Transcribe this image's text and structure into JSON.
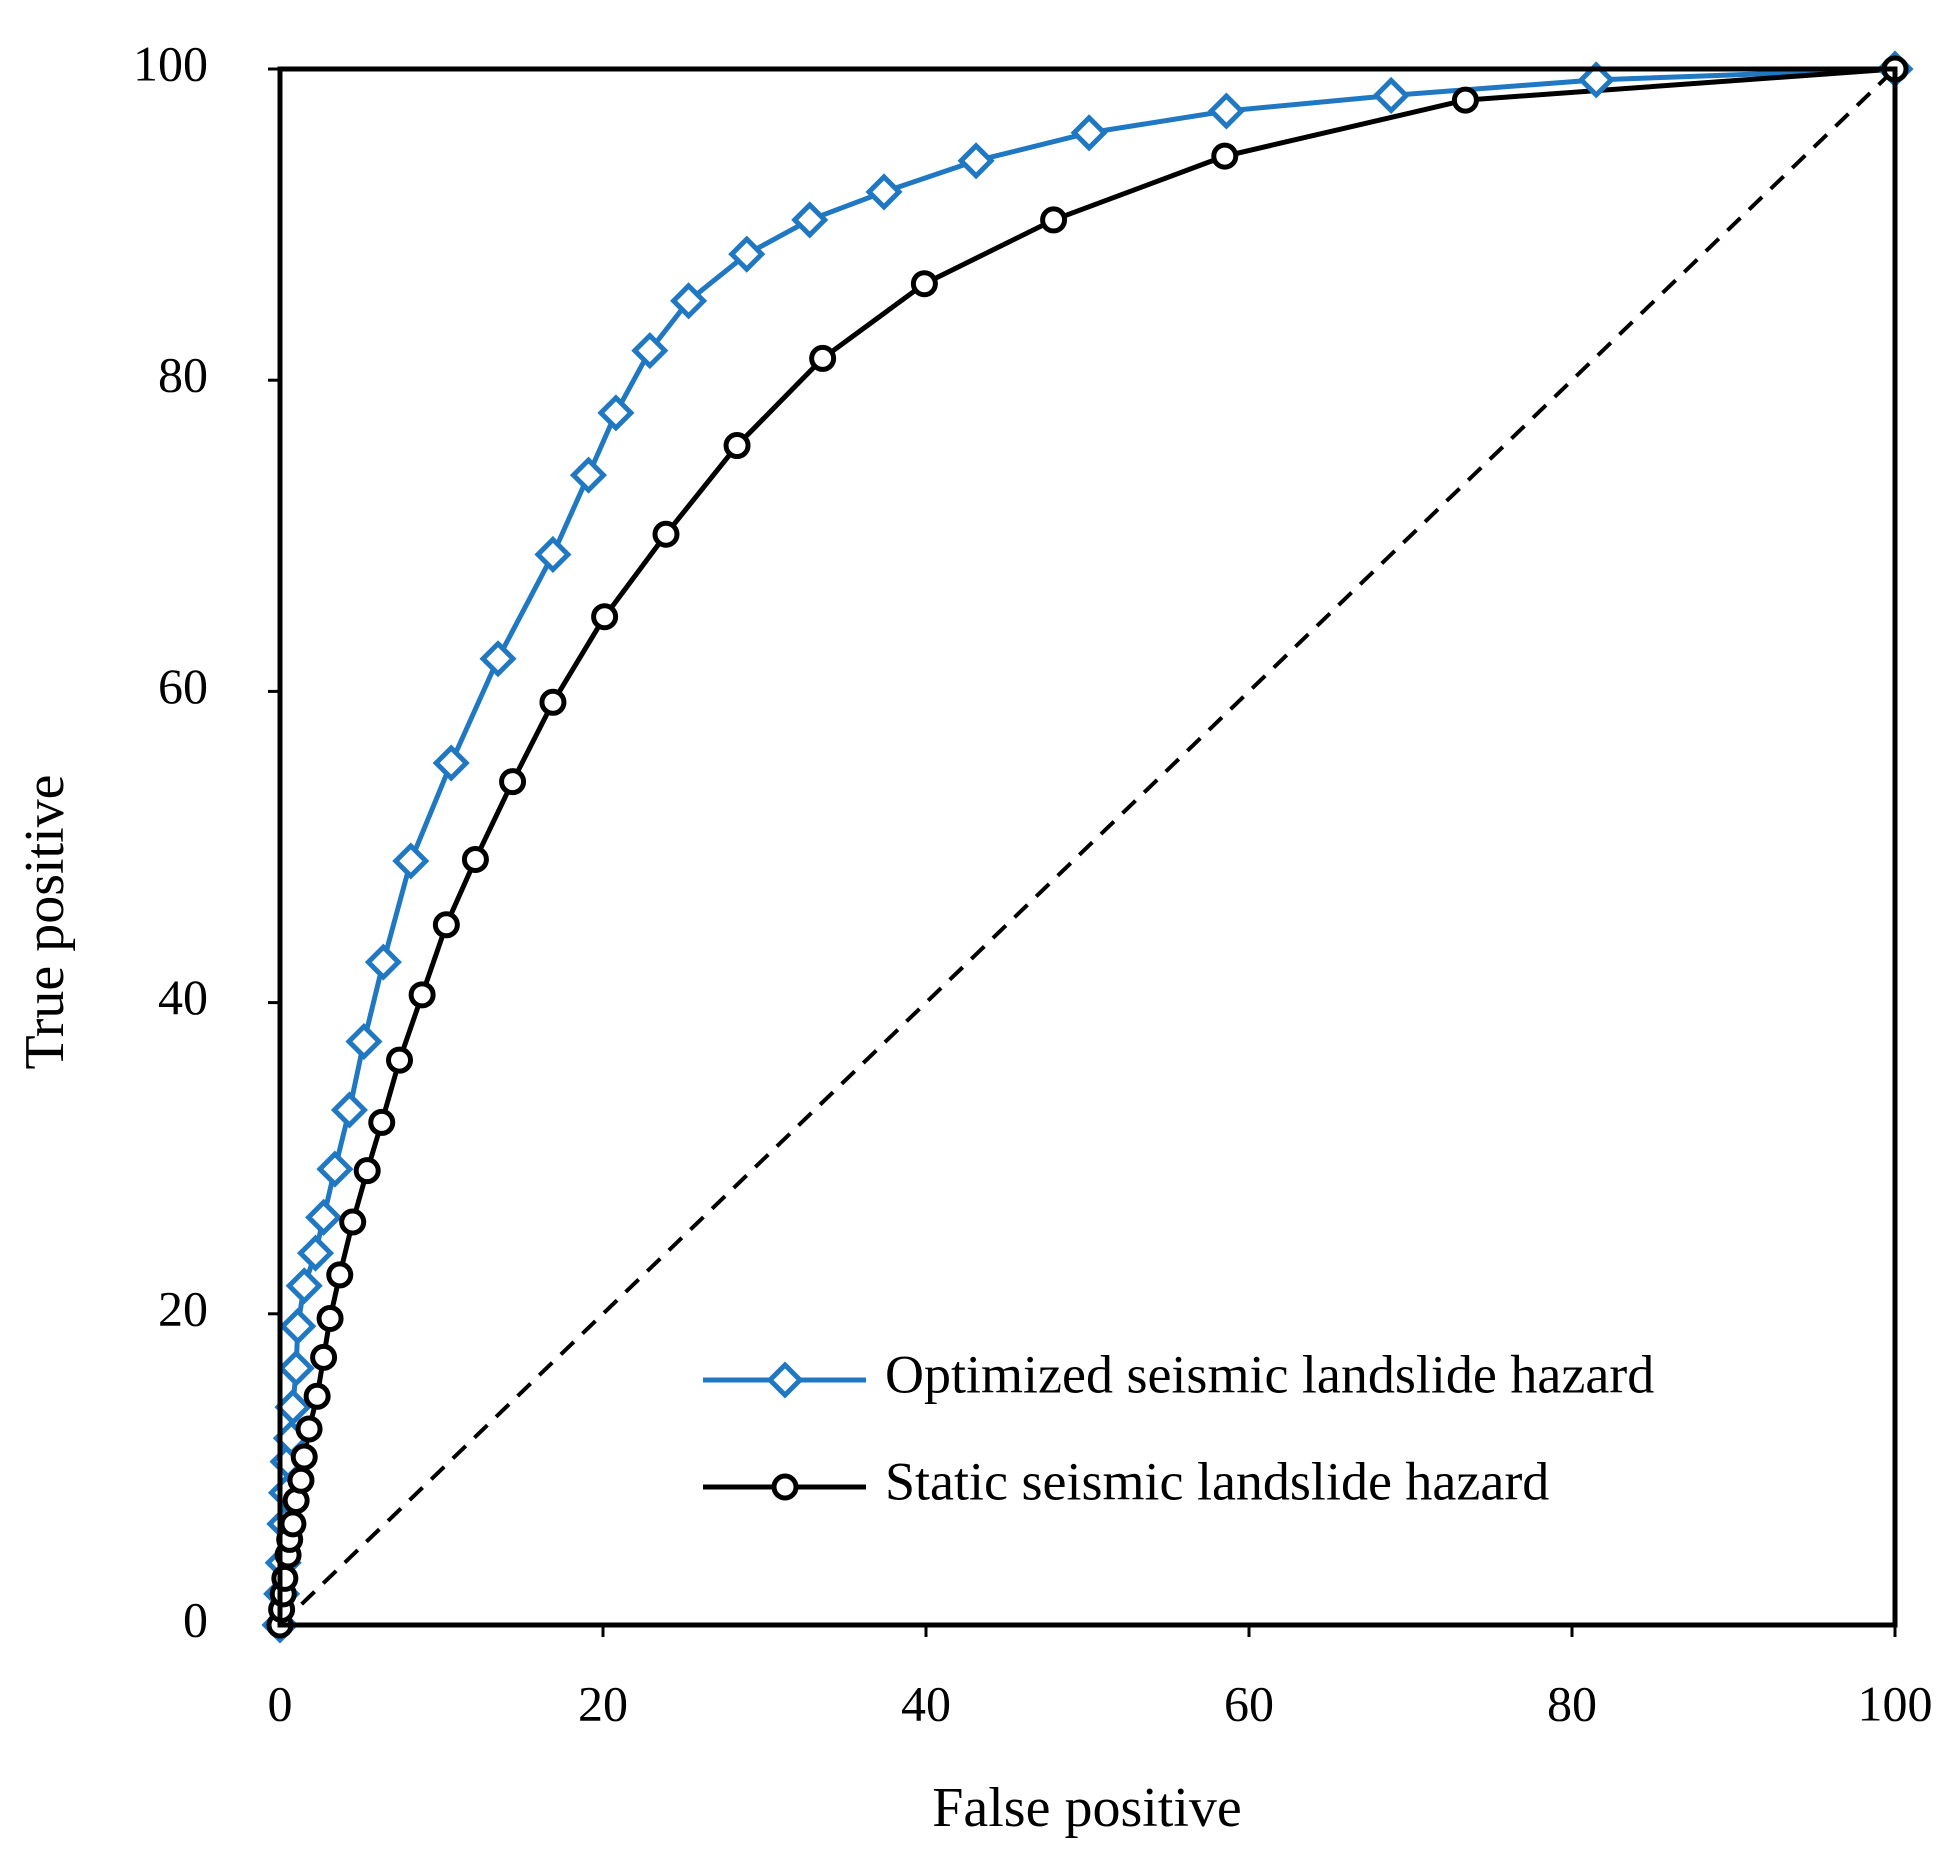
{
  "chart_data": {
    "type": "line",
    "xlabel": "False positive",
    "ylabel": "True positive",
    "xlim": [
      0,
      100
    ],
    "ylim": [
      0,
      100
    ],
    "xticks": [
      0,
      20,
      40,
      60,
      80,
      100
    ],
    "yticks": [
      0,
      20,
      40,
      60,
      80,
      100
    ],
    "legend": "lower right",
    "series": [
      {
        "name": "Optimized seismic landslide hazard",
        "color": "#1f78c1",
        "marker": "diamond",
        "x": [
          0,
          0.1,
          0.2,
          0.3,
          0.4,
          0.5,
          0.7,
          0.8,
          1.0,
          1.1,
          1.5,
          2.2,
          2.7,
          3.4,
          4.3,
          5.2,
          6.4,
          8.1,
          10.6,
          13.5,
          16.9,
          19.1,
          20.8,
          22.9,
          25.3,
          28.9,
          32.8,
          37.4,
          43.1,
          50.1,
          58.6,
          68.8,
          81.5,
          100
        ],
        "values": [
          0,
          2,
          4,
          6.5,
          8.5,
          10.5,
          12,
          14,
          16.5,
          19.2,
          21.8,
          23.9,
          26.2,
          29.3,
          33.1,
          37.5,
          42.6,
          49.1,
          55.4,
          62.1,
          68.8,
          73.9,
          77.9,
          81.9,
          85.1,
          88.1,
          90.3,
          92.1,
          94.1,
          95.9,
          97.3,
          98.3,
          99.3,
          100
        ]
      },
      {
        "name": "Static seismic landslide hazard",
        "color": "#000000",
        "marker": "circle",
        "x": [
          0,
          0.1,
          0.2,
          0.3,
          0.5,
          0.6,
          0.8,
          1.0,
          1.3,
          1.5,
          1.8,
          2.3,
          2.7,
          3.1,
          3.7,
          4.5,
          5.4,
          6.3,
          7.4,
          8.8,
          10.3,
          12.1,
          14.4,
          16.9,
          20.1,
          23.9,
          28.3,
          33.6,
          39.9,
          47.9,
          58.5,
          73.4,
          100
        ],
        "values": [
          0,
          1,
          2,
          3,
          4.5,
          5.5,
          6.5,
          8,
          9.3,
          10.8,
          12.6,
          14.7,
          17.2,
          19.7,
          22.5,
          25.9,
          29.2,
          32.3,
          36.3,
          40.5,
          45,
          49.2,
          54.2,
          59.3,
          64.8,
          70.1,
          75.8,
          81.4,
          86.2,
          90.3,
          94.4,
          98.0,
          100
        ]
      }
    ]
  }
}
